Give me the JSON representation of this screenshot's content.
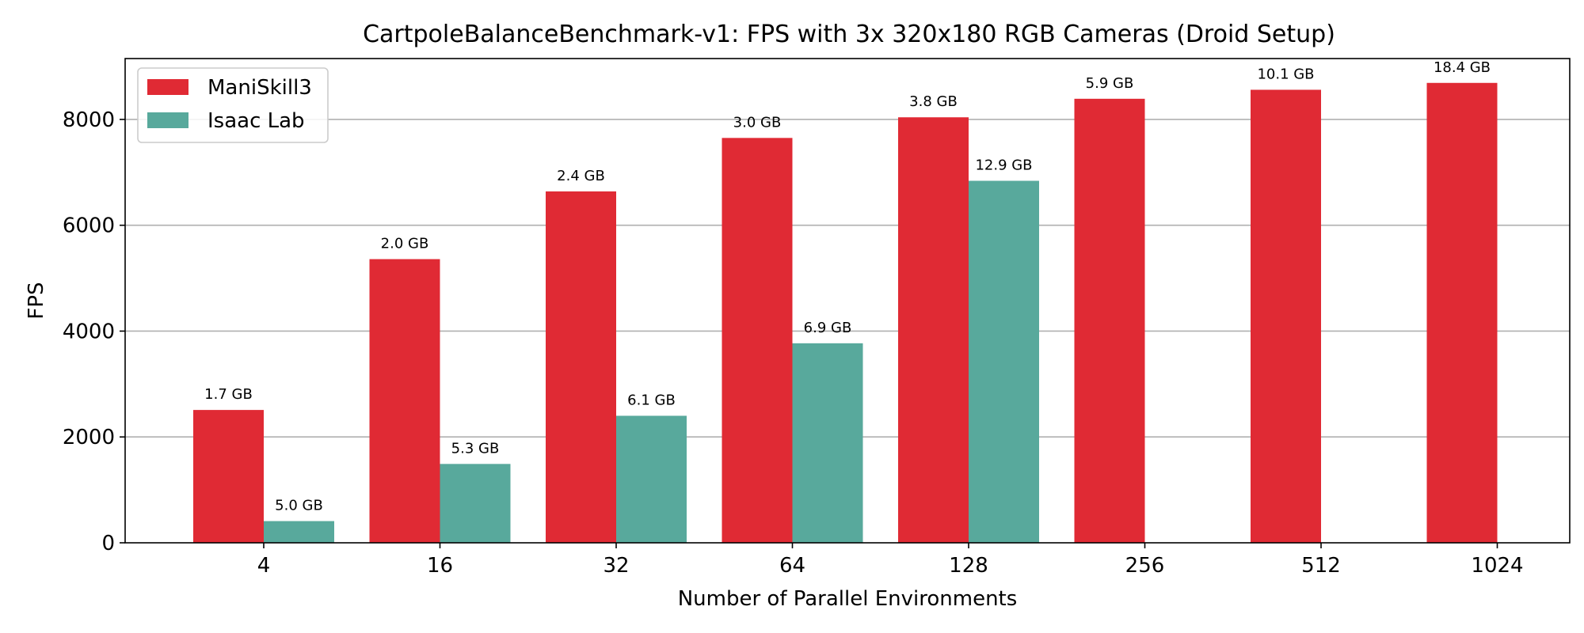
{
  "chart_data": {
    "type": "bar",
    "title": "CartpoleBalanceBenchmark-v1: FPS with 3x 320x180 RGB Cameras (Droid Setup)",
    "xlabel": "Number of Parallel Environments",
    "ylabel": "FPS",
    "categories": [
      "4",
      "16",
      "32",
      "64",
      "128",
      "256",
      "512",
      "1024"
    ],
    "ylim": [
      0,
      9150
    ],
    "yticks": [
      0,
      2000,
      4000,
      6000,
      8000
    ],
    "grid": "y",
    "legend_position": "top-left",
    "series": [
      {
        "name": "ManiSkill3",
        "color": "#e02a34",
        "values": [
          2510,
          5360,
          6640,
          7650,
          8040,
          8390,
          8560,
          8690
        ],
        "labels": [
          "1.7 GB",
          "2.0 GB",
          "2.4 GB",
          "3.0 GB",
          "3.8 GB",
          "5.9 GB",
          "10.1 GB",
          "18.4 GB"
        ]
      },
      {
        "name": "Isaac Lab",
        "color": "#58a99c",
        "values": [
          410,
          1490,
          2400,
          3770,
          6840,
          null,
          null,
          null
        ],
        "labels": [
          "5.0 GB",
          "5.3 GB",
          "6.1 GB",
          "6.9 GB",
          "12.9 GB",
          null,
          null,
          null
        ]
      }
    ]
  }
}
